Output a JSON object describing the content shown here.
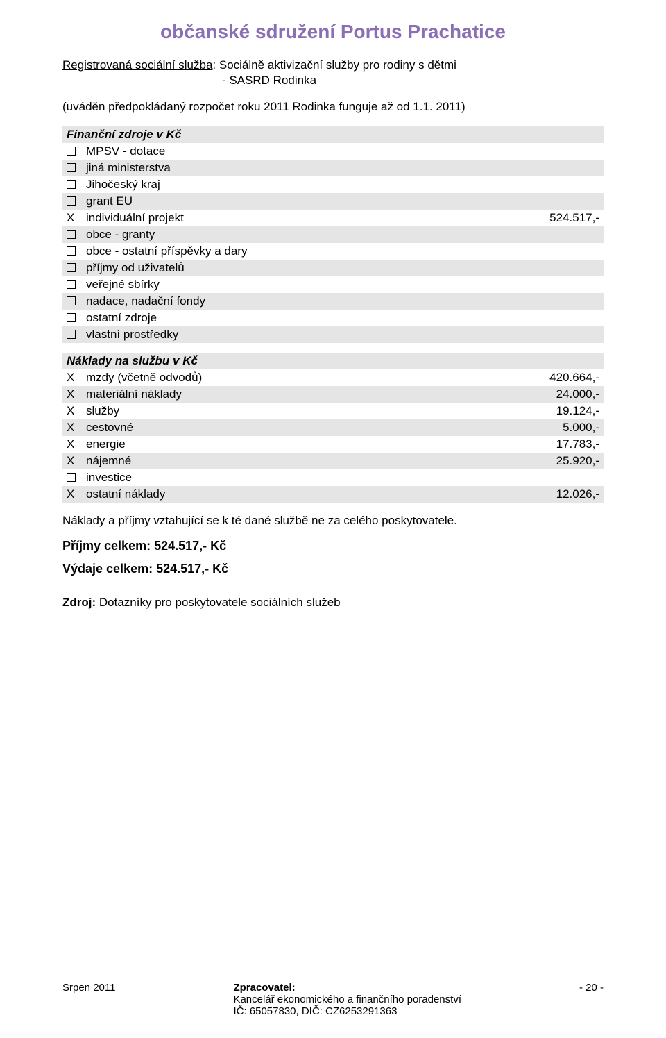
{
  "colors": {
    "title": "#8a6fb5",
    "text": "#000000",
    "shaded_row_bg": "#e5e5e5",
    "background": "#ffffff"
  },
  "title": "občanské sdružení Portus Prachatice",
  "service": {
    "label": "Registrovaná sociální služba",
    "name": ": Sociálně aktivizační služby pro rodiny s dětmi",
    "sub": "- SASRD Rodinka"
  },
  "note": "(uváděn předpokládaný rozpočet roku 2011 Rodinka funguje až od 1.1. 2011)",
  "sources_section": {
    "heading": "Finanční zdroje v Kč",
    "rows": [
      {
        "mark": "box",
        "label": "MPSV - dotace",
        "value": "",
        "shaded": false
      },
      {
        "mark": "box",
        "label": "jiná ministerstva",
        "value": "",
        "shaded": true
      },
      {
        "mark": "box",
        "label": "Jihočeský kraj",
        "value": "",
        "shaded": false
      },
      {
        "mark": "box",
        "label": "grant EU",
        "value": "",
        "shaded": true
      },
      {
        "mark": "X",
        "label": "individuální projekt",
        "value": "524.517,-",
        "shaded": false
      },
      {
        "mark": "box",
        "label": "obce - granty",
        "value": "",
        "shaded": true
      },
      {
        "mark": "box",
        "label": "obce - ostatní příspěvky a dary",
        "value": "",
        "shaded": false
      },
      {
        "mark": "box",
        "label": "příjmy od uživatelů",
        "value": "",
        "shaded": true
      },
      {
        "mark": "box",
        "label": "veřejné sbírky",
        "value": "",
        "shaded": false
      },
      {
        "mark": "box",
        "label": "nadace, nadační fondy",
        "value": "",
        "shaded": true
      },
      {
        "mark": "box",
        "label": "ostatní zdroje",
        "value": "",
        "shaded": false
      },
      {
        "mark": "box",
        "label": "vlastní prostředky",
        "value": "",
        "shaded": true
      }
    ]
  },
  "costs_section": {
    "heading": "Náklady na službu v Kč",
    "rows": [
      {
        "mark": "X",
        "label": "mzdy (včetně odvodů)",
        "value": "420.664,-",
        "shaded": false
      },
      {
        "mark": "X",
        "label": "materiální náklady",
        "value": "24.000,-",
        "shaded": true
      },
      {
        "mark": "X",
        "label": "služby",
        "value": "19.124,-",
        "shaded": false
      },
      {
        "mark": "X",
        "label": "cestovné",
        "value": "5.000,-",
        "shaded": true
      },
      {
        "mark": "X",
        "label": "energie",
        "value": "17.783,-",
        "shaded": false
      },
      {
        "mark": "X",
        "label": "nájemné",
        "value": "25.920,-",
        "shaded": true
      },
      {
        "mark": "box",
        "label": "investice",
        "value": "",
        "shaded": false
      },
      {
        "mark": "X",
        "label": "ostatní náklady",
        "value": "12.026,-",
        "shaded": true
      }
    ]
  },
  "footnote": "Náklady a příjmy vztahující se k té dané službě ne za celého poskytovatele.",
  "income_total": "Příjmy celkem: 524.517,- Kč",
  "expense_total": "Výdaje celkem: 524.517,- Kč",
  "source_line": {
    "label": "Zdroj:",
    "text": " Dotazníky pro poskytovatele sociálních služeb"
  },
  "footer": {
    "left": "Srpen 2011",
    "mid_title": "Zpracovatel:",
    "mid_line1": "Kancelář ekonomického a finančního poradenství",
    "mid_line2": "IČ: 65057830, DIČ: CZ6253291363",
    "right": "- 20 -"
  }
}
